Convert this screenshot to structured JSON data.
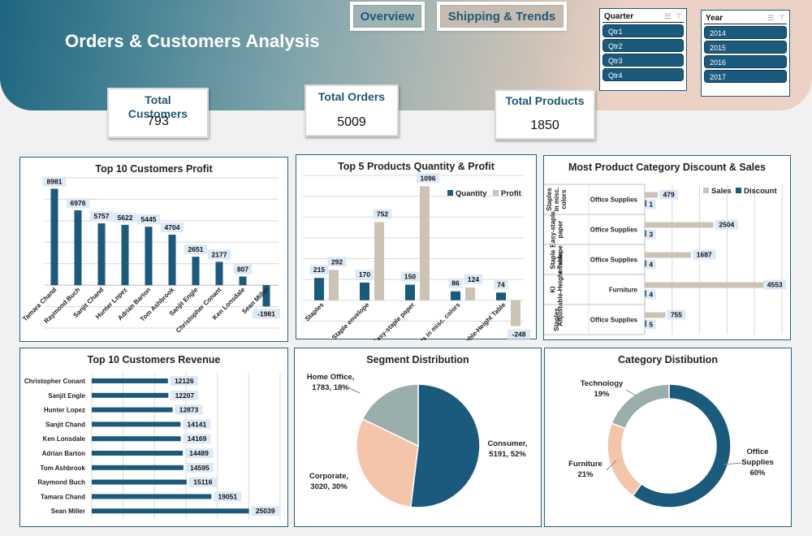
{
  "header": {
    "title": "Orders & Customers Analysis",
    "tabs": [
      {
        "label": "Overview",
        "active": true
      },
      {
        "label": "Shipping & Trends",
        "active": false
      }
    ]
  },
  "kpis": {
    "customers": {
      "label": "Total Customers",
      "value": "793"
    },
    "orders": {
      "label": "Total Orders",
      "value": "5009"
    },
    "products": {
      "label": "Total Products",
      "value": "1850"
    }
  },
  "slicers": {
    "quarter": {
      "title": "Quarter",
      "items": [
        "Qtr1",
        "Qtr2",
        "Qtr3",
        "Qtr4"
      ],
      "icons": [
        "multi-select-icon",
        "clear-filter-icon"
      ]
    },
    "year": {
      "title": "Year",
      "items": [
        "2014",
        "2015",
        "2016",
        "2017"
      ],
      "icons": [
        "multi-select-icon",
        "clear-filter-icon"
      ]
    }
  },
  "colors": {
    "primary": "#1a5a7c",
    "sand": "#cdc3b5",
    "peach": "#f4c5a8",
    "sage": "#9aaeab",
    "label_bg": "#dde9f6"
  },
  "chart_data": [
    {
      "id": "profit",
      "type": "bar",
      "title": "Top 10 Customers Profit",
      "categories": [
        "Tamara Chand",
        "Raymond Buch",
        "Sanjit Chand",
        "Hunter Lopez",
        "Adrian Barton",
        "Tom Ashbrook",
        "Sanjit Engle",
        "Christopher Conant",
        "Ken Lonsdale",
        "Sean Miller"
      ],
      "values": [
        8981,
        6976,
        5757,
        5622,
        5445,
        4704,
        2651,
        2177,
        807,
        -1981
      ],
      "ylim": [
        -4000,
        10000
      ],
      "grid": true,
      "data_labels": true
    },
    {
      "id": "products",
      "type": "bar",
      "title": "Top 5 Products Quantity & Profit",
      "categories": [
        "Staples",
        "Staple envelope",
        "Easy-staple paper",
        "Staples in misc. colors",
        "KI Adjustable-Height Table"
      ],
      "series": [
        {
          "name": "Quantity",
          "values": [
            215,
            170,
            150,
            86,
            74
          ]
        },
        {
          "name": "Profit",
          "values": [
            292,
            752,
            1096,
            124,
            -248
          ]
        }
      ],
      "ylim": [
        -400,
        1200
      ],
      "legend": "top-right",
      "grid": true
    },
    {
      "id": "category",
      "type": "bar",
      "orientation": "horizontal",
      "title": "Most Product Category Discount & Sales",
      "categories": [
        {
          "product": "Staples in misc. colors",
          "category": "Office Supplies"
        },
        {
          "product": "Easy-staple paper",
          "category": "Office Supplies"
        },
        {
          "product": "Staple envelope",
          "category": "Office Supplies"
        },
        {
          "product": "KI Adjustable-Height Table",
          "category": "Furniture"
        },
        {
          "product": "Staples",
          "category": "Office Supplies"
        }
      ],
      "series": [
        {
          "name": "Sales",
          "values": [
            479,
            2504,
            1687,
            4553,
            755
          ]
        },
        {
          "name": "Discount",
          "values": [
            1,
            3,
            4,
            4,
            5
          ]
        }
      ],
      "xlim": [
        0,
        5000
      ],
      "legend": "top-right",
      "grid": true
    },
    {
      "id": "revenue",
      "type": "bar",
      "orientation": "horizontal",
      "title": "Top 10 Customers Revenue",
      "categories": [
        "Christopher Conant",
        "Sanjit Engle",
        "Hunter Lopez",
        "Sanjit Chand",
        "Ken Lonsdale",
        "Adrian Barton",
        "Tom Ashbrook",
        "Raymond Buch",
        "Tamara Chand",
        "Sean Miller"
      ],
      "values": [
        12126,
        12207,
        12873,
        14141,
        14169,
        14489,
        14595,
        15116,
        19051,
        25039
      ],
      "xlim": [
        0,
        30000
      ],
      "grid": true
    },
    {
      "id": "segment",
      "type": "pie",
      "title": "Segment Distribution",
      "slices": [
        {
          "label": "Consumer",
          "value": 5191,
          "percent": 52
        },
        {
          "label": "Corporate",
          "value": 3020,
          "percent": 30
        },
        {
          "label": "Home Office",
          "value": 1783,
          "percent": 18
        }
      ]
    },
    {
      "id": "catdist",
      "type": "pie",
      "donut": true,
      "title": "Category Distibution",
      "slices": [
        {
          "label": "Office Supplies",
          "percent": 60
        },
        {
          "label": "Furniture",
          "percent": 21
        },
        {
          "label": "Technology",
          "percent": 19
        }
      ]
    }
  ]
}
